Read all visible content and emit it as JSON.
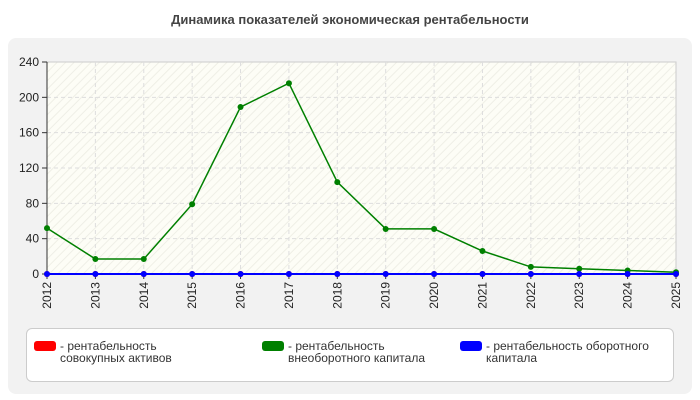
{
  "chart_data": {
    "type": "line",
    "title": "Динамика показателей экономическая рентабельности",
    "categories": [
      "2012",
      "2013",
      "2014",
      "2015",
      "2016",
      "2017",
      "2018",
      "2019",
      "2020",
      "2021",
      "2022",
      "2023",
      "2024",
      "2025"
    ],
    "ylim": [
      0,
      240
    ],
    "yticks": [
      "0",
      "40",
      "80",
      "120",
      "160",
      "200",
      "240"
    ],
    "grid": true,
    "legend_position": "bottom",
    "series": [
      {
        "name": "- рентабельность совокупных активов",
        "color": "#ff0000",
        "values": [
          0,
          0,
          0,
          0,
          0,
          0,
          0,
          0,
          0,
          0,
          0,
          0,
          0,
          0
        ]
      },
      {
        "name": "- рентабельность внеоборотного капитала",
        "color": "#008000",
        "values": [
          52,
          17,
          17,
          79,
          189,
          216,
          104,
          51,
          51,
          26,
          8,
          6,
          4,
          2
        ]
      },
      {
        "name": "- рентабельность оборотного капитала",
        "color": "#0000ff",
        "values": [
          0,
          0,
          0,
          0,
          0,
          0,
          0,
          0,
          0,
          0,
          0,
          0,
          0,
          0
        ]
      }
    ]
  }
}
